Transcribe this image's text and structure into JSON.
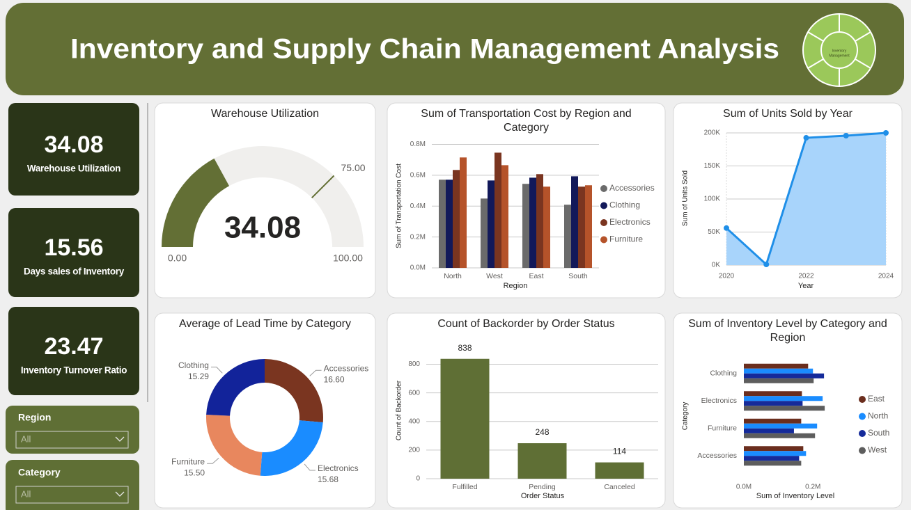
{
  "header": {
    "title": "Inventory and Supply Chain Management Analysis",
    "logo_text": [
      "Inventory",
      "Management"
    ]
  },
  "kpis": [
    {
      "value": 34.08,
      "label": "Warehouse Utilization"
    },
    {
      "value": 15.56,
      "label": "Days sales of Inventory"
    },
    {
      "value": 23.47,
      "label": "Inventory Turnover Ratio"
    }
  ],
  "slicers": [
    {
      "label": "Region",
      "value": "All"
    },
    {
      "label": "Category",
      "value": "All"
    }
  ],
  "chart_data": [
    {
      "type": "gauge",
      "title": "Warehouse Utilization",
      "value": 34.08,
      "color": "#636f35",
      "track_color": "#f0efed",
      "ylim": [
        0,
        100
      ],
      "yticks": [
        {
          "value": 0,
          "label": "0.00"
        },
        {
          "value": 100,
          "label": "100.00"
        }
      ],
      "target": {
        "value": 75,
        "label": "75.00"
      }
    },
    {
      "type": "bar",
      "title": "Sum of Transportation Cost by Region and Category",
      "x_label": "Region",
      "y_label": "Sum of Transportation Cost",
      "categories": [
        "North",
        "West",
        "East",
        "South"
      ],
      "series": [
        {
          "name": "Accessories",
          "color": "#6b6b6b",
          "values": [
            571000,
            449000,
            544000,
            409000
          ]
        },
        {
          "name": "Clothing",
          "color": "#12195a",
          "values": [
            571000,
            566000,
            584000,
            593000
          ]
        },
        {
          "name": "Electronics",
          "color": "#7a3520",
          "values": [
            634000,
            746000,
            607000,
            526000
          ]
        },
        {
          "name": "Furniture",
          "color": "#b5532a",
          "values": [
            715000,
            665000,
            526000,
            535000
          ]
        }
      ],
      "ylim": [
        0,
        820000
      ],
      "yticks": [
        {
          "value": 0,
          "label": "0.0M"
        },
        {
          "value": 200000,
          "label": "0.2M"
        },
        {
          "value": 400000,
          "label": "0.4M"
        },
        {
          "value": 600000,
          "label": "0.6M"
        },
        {
          "value": 800000,
          "label": "0.8M"
        }
      ],
      "grid": true,
      "legend": "right"
    },
    {
      "type": "area",
      "title": "Sum of Units Sold by Year",
      "x_label": "Year",
      "y_label": "Sum of Units Sold",
      "x": [
        2020,
        2021,
        2022,
        2023,
        2024
      ],
      "series": [
        {
          "name": "Units Sold",
          "color": "#1f8fe8",
          "fill": "#a8d4fb",
          "values": [
            56000,
            1000,
            192600,
            195800,
            200000
          ]
        }
      ],
      "xlim": [
        2020,
        2024
      ],
      "xticks": [
        2020,
        2022,
        2024
      ],
      "ylim": [
        0,
        200000
      ],
      "yticks": [
        {
          "value": 0,
          "label": "0K"
        },
        {
          "value": 50000,
          "label": "50K"
        },
        {
          "value": 100000,
          "label": "100K"
        },
        {
          "value": 150000,
          "label": "150K"
        },
        {
          "value": 200000,
          "label": "200K"
        }
      ],
      "grid": true
    },
    {
      "type": "donut",
      "title": "Average of Lead Time by Category",
      "categories": [
        "Accessories",
        "Electronics",
        "Furniture",
        "Clothing"
      ],
      "values": [
        16.6,
        15.68,
        15.5,
        15.29
      ],
      "value_labels": [
        "16.60",
        "15.68",
        "15.50",
        "15.29"
      ],
      "colors": [
        "#7a3520",
        "#1a8cff",
        "#e8875e",
        "#12239a"
      ]
    },
    {
      "type": "bar",
      "title": "Count of Backorder by Order Status",
      "x_label": "Order Status",
      "y_label": "Count of Backorder",
      "categories": [
        "Fulfilled",
        "Pending",
        "Canceled"
      ],
      "values": [
        838,
        248,
        114
      ],
      "color": "#5f6f35",
      "ylim": [
        0,
        900
      ],
      "yticks": [
        0,
        200,
        400,
        600,
        800
      ],
      "grid": true
    },
    {
      "type": "barh",
      "title": "Sum of Inventory Level by Category and Region",
      "x_label": "Sum of Inventory Level",
      "y_label": "Category",
      "categories": [
        "Clothing",
        "Electronics",
        "Furniture",
        "Accessories"
      ],
      "series": [
        {
          "name": "East",
          "color": "#6b2e1e",
          "values": [
            186000,
            168000,
            166000,
            172000
          ]
        },
        {
          "name": "North",
          "color": "#1a8cff",
          "values": [
            200000,
            228000,
            212000,
            180000
          ]
        },
        {
          "name": "South",
          "color": "#152a9a",
          "values": [
            232000,
            170000,
            145000,
            160000
          ]
        },
        {
          "name": "West",
          "color": "#5d5d5d",
          "values": [
            202000,
            234000,
            206000,
            166000
          ]
        }
      ],
      "xlim": [
        0,
        260000
      ],
      "xticks": [
        {
          "value": 0,
          "label": "0.0M"
        },
        {
          "value": 200000,
          "label": "0.2M"
        }
      ],
      "grid": false,
      "legend": "right"
    }
  ]
}
